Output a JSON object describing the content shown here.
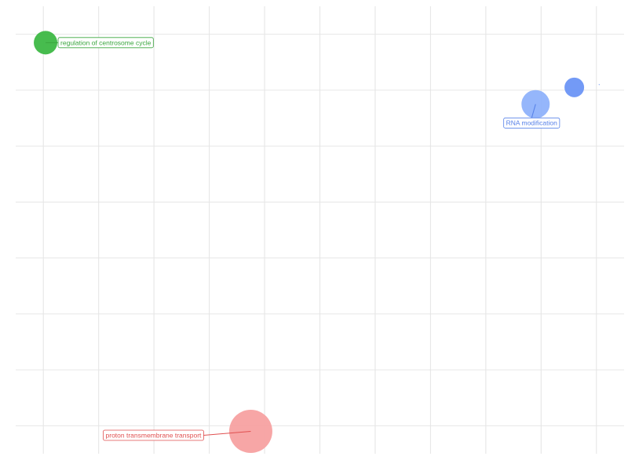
{
  "chart_data": {
    "type": "scatter",
    "title": "",
    "xlabel": "",
    "ylabel": "",
    "grid": true,
    "points": [
      {
        "label": "regulation of centrosome cycle",
        "x": 0.04,
        "y": 3.85,
        "size": 15,
        "color": "#3db845",
        "label_dx": 20,
        "label_dy": 0
      },
      {
        "label": "RNA modification",
        "x": 8.9,
        "y": 2.75,
        "size": 18,
        "color": "#8fb2fb",
        "label_dx": 0,
        "label_dy": 24
      },
      {
        "label": "",
        "x": 9.6,
        "y": 3.05,
        "size": 12.5,
        "color": "#6b95f5",
        "label_dx": 0,
        "label_dy": 0
      },
      {
        "label": "",
        "x": 10.05,
        "y": 3.1,
        "size": 0.6,
        "color": "#6b95f5",
        "label_dx": 0,
        "label_dy": 0
      },
      {
        "label": "proton transmembrane transport",
        "x": 3.75,
        "y": -3.1,
        "size": 27.5,
        "color": "#f7a1a1",
        "label_dx": -80,
        "label_dy": 5
      }
    ],
    "label_colors": {
      "regulation of centrosome cycle": "#3aa63f",
      "RNA modification": "#5580e8",
      "proton transmembrane transport": "#e05050"
    }
  }
}
